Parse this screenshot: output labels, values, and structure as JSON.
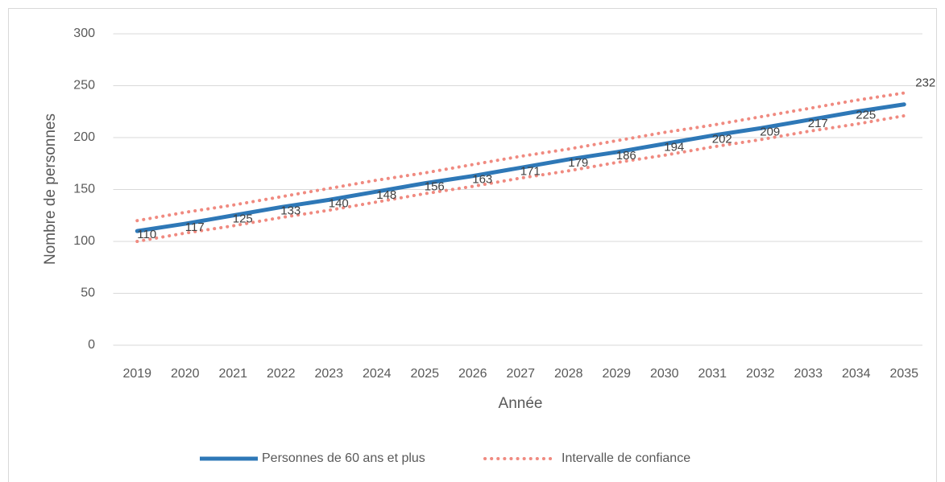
{
  "chart_data": {
    "type": "line",
    "x_label": "Année",
    "y_label": "Nombre de personnes",
    "categories": [
      "2019",
      "2020",
      "2021",
      "2022",
      "2023",
      "2024",
      "2025",
      "2026",
      "2027",
      "2028",
      "2029",
      "2030",
      "2031",
      "2032",
      "2033",
      "2034",
      "2035"
    ],
    "series": [
      {
        "name": "Personnes de 60 ans et plus",
        "color": "#2e78b7",
        "values": [
          110,
          117,
          125,
          133,
          140,
          148,
          156,
          163,
          171,
          179,
          186,
          194,
          202,
          209,
          217,
          225,
          232
        ]
      }
    ],
    "confidence_band": {
      "name": "Intervalle de confiance",
      "color": "#f08a80",
      "upper": [
        120,
        128,
        135,
        143,
        151,
        159,
        166,
        174,
        182,
        189,
        197,
        205,
        212,
        220,
        228,
        236,
        243
      ],
      "lower": [
        100,
        108,
        115,
        123,
        130,
        138,
        146,
        153,
        161,
        168,
        176,
        183,
        191,
        198,
        206,
        213,
        221
      ]
    },
    "ylim": [
      0,
      300
    ],
    "yticks": [
      0,
      50,
      100,
      150,
      200,
      250,
      300
    ],
    "grid": true,
    "legend": "bottom"
  }
}
